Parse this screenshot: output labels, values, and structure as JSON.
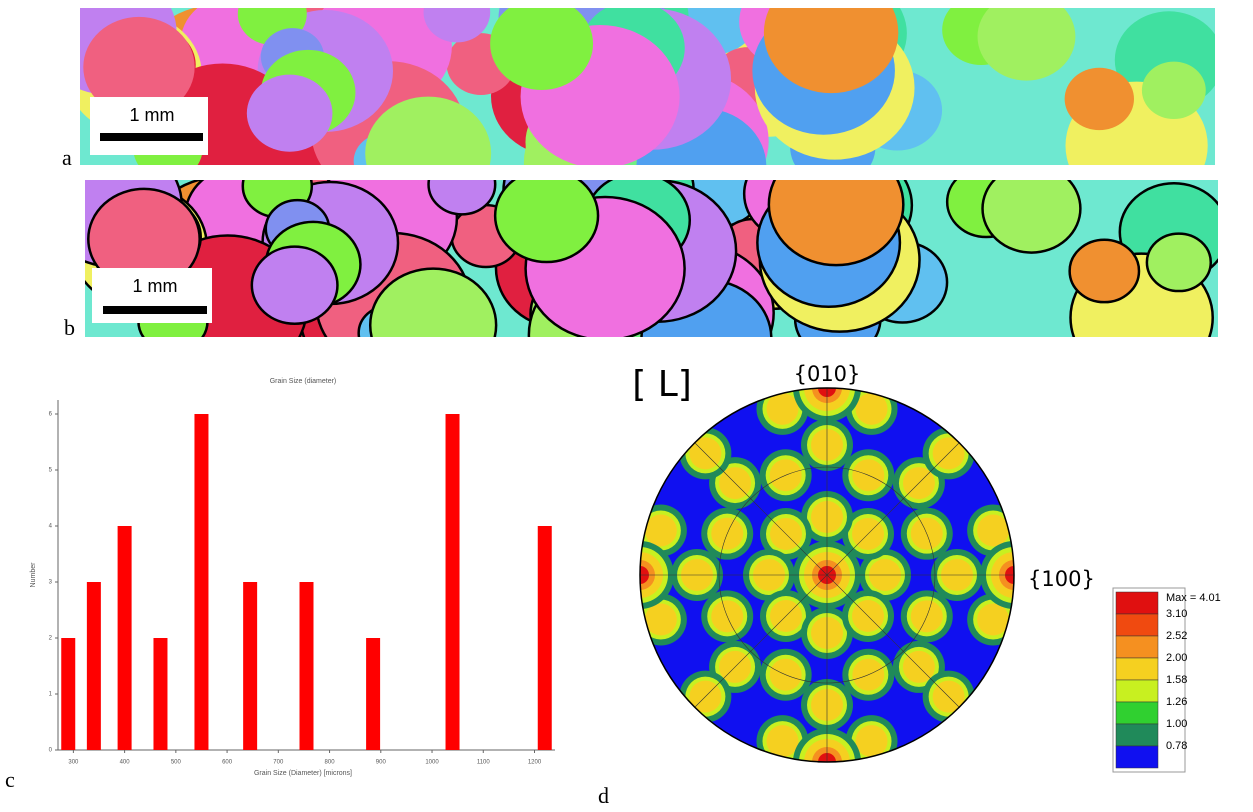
{
  "panels": {
    "a": {
      "label": "a",
      "scale_bar": "1 mm"
    },
    "b": {
      "label": "b",
      "scale_bar": "1 mm"
    },
    "c": {
      "label": "c"
    },
    "d": {
      "label": "d",
      "direction": "[ L]",
      "pole_top": "{010}",
      "pole_right": "{100}",
      "legend": [
        {
          "label": "Max = 4.01",
          "color": "#e01010"
        },
        {
          "label": "3.10",
          "color": "#f04a10"
        },
        {
          "label": "2.52",
          "color": "#f59020"
        },
        {
          "label": "2.00",
          "color": "#f5d020"
        },
        {
          "label": "1.58",
          "color": "#c8f020"
        },
        {
          "label": "1.26",
          "color": "#30d030"
        },
        {
          "label": "1.00",
          "color": "#208a5a"
        },
        {
          "label": "0.78",
          "color": "#1010f0"
        }
      ]
    }
  },
  "chart_data": {
    "type": "bar",
    "title": "Grain Size (diameter)",
    "x_label": "Grain Size (Diameter) [microns]",
    "y_label": "Number",
    "color": "#ff0000",
    "x": [
      290,
      340,
      400,
      470,
      550,
      645,
      755,
      885,
      1040,
      1220
    ],
    "values": [
      2,
      3,
      4,
      2,
      6,
      3,
      3,
      2,
      6,
      4
    ],
    "xlim": [
      270,
      1240
    ],
    "ylim": [
      0,
      6.25
    ],
    "xticks": [
      300,
      400,
      500,
      600,
      700,
      800,
      900,
      1000,
      1100,
      1200
    ],
    "yticks": [
      0,
      1,
      2,
      3,
      4,
      5,
      6
    ]
  }
}
